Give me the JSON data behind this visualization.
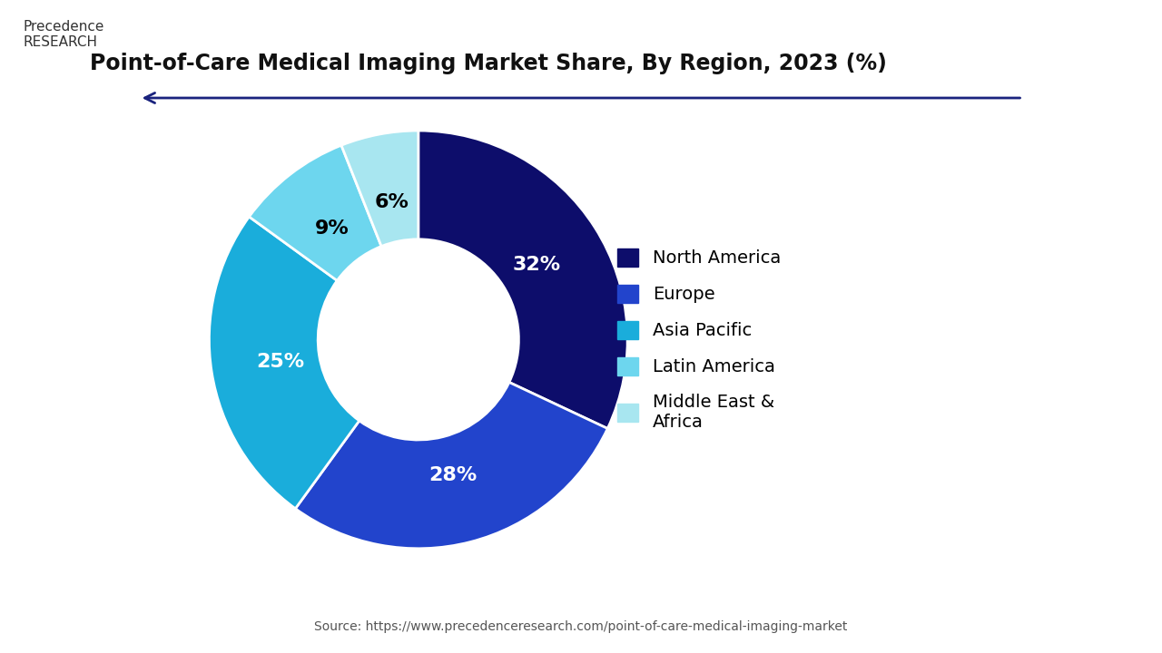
{
  "title": "Point-of-Care Medical Imaging Market Share, By Region, 2023 (%)",
  "labels": [
    "North America",
    "Europe",
    "Asia Pacific",
    "Latin America",
    "Middle East &\nAfrica"
  ],
  "legend_labels": [
    "North America",
    "Europe",
    "Asia Pacific",
    "Latin America",
    "Middle East &\nAfrica"
  ],
  "values": [
    32,
    28,
    25,
    9,
    6
  ],
  "colors": [
    "#0d0d6b",
    "#2244cc",
    "#1aaddb",
    "#6dd6ee",
    "#a8e6f0"
  ],
  "pct_labels": [
    "32%",
    "28%",
    "25%",
    "9%",
    "6%"
  ],
  "pct_colors": [
    "white",
    "white",
    "white",
    "black",
    "black"
  ],
  "source_text": "Source: https://www.precedenceresearch.com/point-of-care-medical-imaging-market",
  "background_color": "#ffffff"
}
